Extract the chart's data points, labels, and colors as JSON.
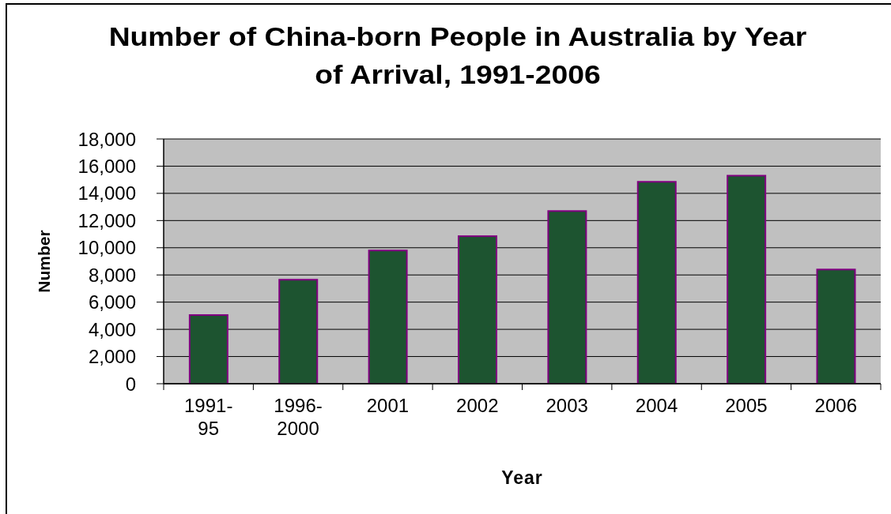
{
  "chart_data": {
    "type": "bar",
    "title": "Number of China-born People in Australia by Year of Arrival, 1991-2006",
    "xlabel": "Year",
    "ylabel": "Number",
    "categories": [
      "1991-95",
      "1996-2000",
      "2001",
      "2002",
      "2003",
      "2004",
      "2005",
      "2006"
    ],
    "values": [
      5050,
      7650,
      9800,
      10850,
      12700,
      14850,
      15300,
      8400
    ],
    "color": "#1d5430",
    "ylim": [
      0,
      18000
    ],
    "yticks": [
      {
        "value": 0,
        "label": "0"
      },
      {
        "value": 2000,
        "label": "2,000"
      },
      {
        "value": 4000,
        "label": "4,000"
      },
      {
        "value": 6000,
        "label": "6,000"
      },
      {
        "value": 8000,
        "label": "8,000"
      },
      {
        "value": 10000,
        "label": "10,000"
      },
      {
        "value": 12000,
        "label": "12,000"
      },
      {
        "value": 14000,
        "label": "14,000"
      },
      {
        "value": 16000,
        "label": "16,000"
      },
      {
        "value": 18000,
        "label": "18,000"
      }
    ],
    "grid": "y"
  }
}
